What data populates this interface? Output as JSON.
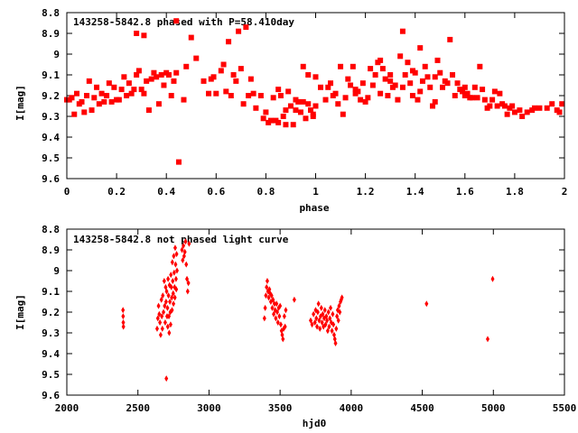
{
  "chart_data": [
    {
      "type": "scatter",
      "title": "143258-5842.8 phased with P=58.410day",
      "xlabel": "phase",
      "ylabel": "I[mag]",
      "xlim": [
        0,
        2
      ],
      "ylim": [
        9.6,
        8.8
      ],
      "y_inverted": true,
      "xticks": [
        0,
        0.2,
        0.4,
        0.6,
        0.8,
        1,
        1.2,
        1.4,
        1.6,
        1.8,
        2
      ],
      "xtick_labels": [
        "0",
        "0.2",
        "0.4",
        "0.6",
        "0.8",
        "1",
        "1.2",
        "1.4",
        "1.6",
        "1.8",
        "2"
      ],
      "yticks": [
        8.8,
        8.9,
        9.0,
        9.1,
        9.2,
        9.3,
        9.4,
        9.5,
        9.6
      ],
      "ytick_labels": [
        "8.8",
        "8.9",
        "9",
        "9.1",
        "9.2",
        "9.3",
        "9.4",
        "9.5",
        "9.6"
      ],
      "marker_color": "#ff0000",
      "marker": "filled-square",
      "points": [
        [
          0.0,
          9.22
        ],
        [
          0.01,
          9.22
        ],
        [
          0.02,
          9.21
        ],
        [
          0.03,
          9.29
        ],
        [
          0.04,
          9.19
        ],
        [
          0.05,
          9.24
        ],
        [
          0.06,
          9.23
        ],
        [
          0.07,
          9.28
        ],
        [
          0.08,
          9.2
        ],
        [
          0.09,
          9.13
        ],
        [
          0.1,
          9.27
        ],
        [
          0.11,
          9.21
        ],
        [
          0.12,
          9.16
        ],
        [
          0.13,
          9.24
        ],
        [
          0.14,
          9.19
        ],
        [
          0.15,
          9.23
        ],
        [
          0.16,
          9.2
        ],
        [
          0.17,
          9.14
        ],
        [
          0.18,
          9.23
        ],
        [
          0.19,
          9.16
        ],
        [
          0.2,
          9.22
        ],
        [
          0.21,
          9.22
        ],
        [
          0.22,
          9.17
        ],
        [
          0.23,
          9.11
        ],
        [
          0.24,
          9.2
        ],
        [
          0.25,
          9.14
        ],
        [
          0.26,
          9.19
        ],
        [
          0.27,
          9.17
        ],
        [
          0.28,
          9.1
        ],
        [
          0.29,
          9.08
        ],
        [
          0.3,
          9.17
        ],
        [
          0.31,
          9.19
        ],
        [
          0.32,
          9.13
        ],
        [
          0.33,
          9.27
        ],
        [
          0.34,
          9.12
        ],
        [
          0.35,
          9.09
        ],
        [
          0.36,
          9.11
        ],
        [
          0.37,
          9.24
        ],
        [
          0.38,
          9.1
        ],
        [
          0.39,
          9.15
        ],
        [
          0.4,
          9.09
        ],
        [
          0.41,
          9.1
        ],
        [
          0.42,
          9.2
        ],
        [
          0.43,
          9.13
        ],
        [
          0.44,
          9.09
        ],
        [
          0.28,
          8.9
        ],
        [
          0.31,
          8.91
        ],
        [
          0.44,
          8.84
        ],
        [
          0.45,
          9.52
        ],
        [
          0.47,
          9.22
        ],
        [
          0.48,
          9.06
        ],
        [
          0.5,
          8.92
        ],
        [
          0.52,
          9.02
        ],
        [
          0.55,
          9.13
        ],
        [
          0.57,
          9.19
        ],
        [
          0.58,
          9.12
        ],
        [
          0.59,
          9.11
        ],
        [
          0.6,
          9.19
        ],
        [
          0.62,
          9.08
        ],
        [
          0.63,
          9.05
        ],
        [
          0.64,
          9.18
        ],
        [
          0.65,
          8.94
        ],
        [
          0.66,
          9.2
        ],
        [
          0.67,
          9.1
        ],
        [
          0.68,
          9.13
        ],
        [
          0.69,
          8.89
        ],
        [
          0.7,
          9.07
        ],
        [
          0.71,
          9.24
        ],
        [
          0.72,
          8.87
        ],
        [
          0.73,
          9.2
        ],
        [
          0.74,
          9.12
        ],
        [
          0.75,
          9.19
        ],
        [
          0.76,
          9.26
        ],
        [
          0.78,
          9.2
        ],
        [
          0.79,
          9.31
        ],
        [
          0.8,
          9.28
        ],
        [
          0.81,
          9.33
        ],
        [
          0.82,
          9.32
        ],
        [
          0.83,
          9.21
        ],
        [
          0.84,
          9.32
        ],
        [
          0.85,
          9.33
        ],
        [
          0.86,
          9.2
        ],
        [
          0.87,
          9.3
        ],
        [
          0.88,
          9.34
        ],
        [
          0.89,
          9.18
        ],
        [
          0.9,
          9.25
        ],
        [
          0.91,
          9.34
        ],
        [
          0.92,
          9.27
        ],
        [
          0.93,
          9.23
        ],
        [
          0.94,
          9.28
        ],
        [
          0.95,
          9.23
        ],
        [
          0.96,
          9.31
        ],
        [
          0.97,
          9.24
        ],
        [
          0.98,
          9.27
        ],
        [
          0.99,
          9.29
        ],
        [
          1.0,
          9.25
        ],
        [
          0.85,
          9.17
        ],
        [
          0.88,
          9.27
        ],
        [
          0.92,
          9.22
        ],
        [
          0.95,
          9.06
        ],
        [
          0.97,
          9.1
        ],
        [
          0.99,
          9.3
        ],
        [
          1.0,
          9.11
        ],
        [
          1.02,
          9.16
        ],
        [
          1.04,
          9.22
        ],
        [
          1.05,
          9.16
        ],
        [
          1.06,
          9.14
        ],
        [
          1.07,
          9.2
        ],
        [
          1.08,
          9.19
        ],
        [
          1.09,
          9.24
        ],
        [
          1.1,
          9.06
        ],
        [
          1.11,
          9.29
        ],
        [
          1.12,
          9.21
        ],
        [
          1.13,
          9.12
        ],
        [
          1.14,
          9.15
        ],
        [
          1.15,
          9.06
        ],
        [
          1.16,
          9.19
        ],
        [
          1.17,
          9.18
        ],
        [
          1.18,
          9.22
        ],
        [
          1.19,
          9.14
        ],
        [
          1.2,
          9.23
        ],
        [
          1.21,
          9.21
        ],
        [
          1.22,
          9.07
        ],
        [
          1.23,
          9.15
        ],
        [
          1.24,
          9.1
        ],
        [
          1.25,
          9.04
        ],
        [
          1.26,
          9.19
        ],
        [
          1.27,
          9.07
        ],
        [
          1.28,
          9.12
        ],
        [
          1.29,
          9.2
        ],
        [
          1.3,
          9.1
        ],
        [
          1.31,
          9.16
        ],
        [
          1.32,
          9.15
        ],
        [
          1.33,
          9.22
        ],
        [
          1.34,
          9.01
        ],
        [
          1.35,
          8.89
        ],
        [
          1.36,
          9.1
        ],
        [
          1.37,
          9.04
        ],
        [
          1.38,
          9.14
        ],
        [
          1.39,
          9.08
        ],
        [
          1.4,
          9.09
        ],
        [
          1.41,
          9.22
        ],
        [
          1.42,
          8.97
        ],
        [
          1.43,
          9.13
        ],
        [
          1.44,
          9.06
        ],
        [
          1.45,
          9.11
        ],
        [
          1.46,
          9.16
        ],
        [
          1.47,
          9.25
        ],
        [
          1.48,
          9.23
        ],
        [
          1.49,
          9.03
        ],
        [
          1.5,
          9.09
        ],
        [
          1.51,
          9.16
        ],
        [
          1.52,
          9.13
        ],
        [
          1.53,
          9.14
        ],
        [
          1.54,
          8.93
        ],
        [
          1.55,
          9.1
        ],
        [
          1.56,
          9.2
        ],
        [
          1.57,
          9.14
        ],
        [
          1.58,
          9.17
        ],
        [
          1.59,
          9.18
        ],
        [
          1.6,
          9.2
        ],
        [
          1.61,
          9.19
        ],
        [
          1.62,
          9.21
        ],
        [
          1.63,
          9.21
        ],
        [
          1.64,
          9.16
        ],
        [
          1.65,
          9.21
        ],
        [
          1.66,
          9.06
        ],
        [
          1.67,
          9.17
        ],
        [
          1.68,
          9.22
        ],
        [
          1.69,
          9.26
        ],
        [
          1.7,
          9.25
        ],
        [
          1.71,
          9.22
        ],
        [
          1.72,
          9.18
        ],
        [
          1.73,
          9.25
        ],
        [
          1.74,
          9.19
        ],
        [
          1.75,
          9.24
        ],
        [
          1.76,
          9.25
        ],
        [
          1.77,
          9.29
        ],
        [
          1.78,
          9.26
        ],
        [
          1.79,
          9.25
        ],
        [
          1.8,
          9.28
        ],
        [
          1.82,
          9.27
        ],
        [
          1.83,
          9.3
        ],
        [
          1.85,
          9.28
        ],
        [
          1.87,
          9.27
        ],
        [
          1.88,
          9.26
        ],
        [
          1.9,
          9.26
        ],
        [
          1.93,
          9.26
        ],
        [
          1.95,
          9.24
        ],
        [
          1.97,
          9.27
        ],
        [
          1.99,
          9.24
        ],
        [
          1.98,
          9.28
        ],
        [
          1.35,
          9.16
        ],
        [
          1.42,
          9.18
        ],
        [
          1.48,
          9.11
        ],
        [
          1.26,
          9.03
        ],
        [
          1.3,
          9.13
        ],
        [
          1.6,
          9.16
        ],
        [
          1.16,
          9.17
        ],
        [
          1.39,
          9.2
        ]
      ]
    },
    {
      "type": "scatter",
      "title": "143258-5842.8 not phased light curve",
      "xlabel": "hjd0",
      "ylabel": "I[mag]",
      "xlim": [
        2000,
        5500
      ],
      "ylim": [
        9.6,
        8.8
      ],
      "y_inverted": true,
      "xticks": [
        2000,
        2500,
        3000,
        3500,
        4000,
        4500,
        5000,
        5500
      ],
      "xtick_labels": [
        "2000",
        "2500",
        "3000",
        "3500",
        "4000",
        "4500",
        "5000",
        "5500"
      ],
      "yticks": [
        8.8,
        8.9,
        9.0,
        9.1,
        9.2,
        9.3,
        9.4,
        9.5,
        9.6
      ],
      "ytick_labels": [
        "8.8",
        "8.9",
        "9",
        "9.1",
        "9.2",
        "9.3",
        "9.4",
        "9.5",
        "9.6"
      ],
      "marker_color": "#ff0000",
      "marker": "filled-diamond",
      "points": [
        [
          2395,
          9.19
        ],
        [
          2396,
          9.22
        ],
        [
          2397,
          9.25
        ],
        [
          2398,
          9.27
        ],
        [
          2635,
          9.28
        ],
        [
          2640,
          9.23
        ],
        [
          2645,
          9.17
        ],
        [
          2650,
          9.21
        ],
        [
          2655,
          9.25
        ],
        [
          2660,
          9.31
        ],
        [
          2665,
          9.14
        ],
        [
          2668,
          9.22
        ],
        [
          2672,
          9.28
        ],
        [
          2675,
          9.12
        ],
        [
          2680,
          9.2
        ],
        [
          2685,
          9.05
        ],
        [
          2688,
          9.17
        ],
        [
          2692,
          9.25
        ],
        [
          2695,
          9.08
        ],
        [
          2698,
          9.15
        ],
        [
          2700,
          9.52
        ],
        [
          2702,
          9.1
        ],
        [
          2705,
          9.22
        ],
        [
          2708,
          9.18
        ],
        [
          2710,
          9.27
        ],
        [
          2712,
          9.04
        ],
        [
          2715,
          9.12
        ],
        [
          2718,
          9.22
        ],
        [
          2720,
          9.3
        ],
        [
          2722,
          9.07
        ],
        [
          2725,
          9.15
        ],
        [
          2728,
          9.2
        ],
        [
          2730,
          9.26
        ],
        [
          2732,
          9.02
        ],
        [
          2735,
          9.08
        ],
        [
          2738,
          9.13
        ],
        [
          2740,
          9.19
        ],
        [
          2742,
          8.96
        ],
        [
          2745,
          9.05
        ],
        [
          2748,
          9.11
        ],
        [
          2750,
          9.16
        ],
        [
          2752,
          8.93
        ],
        [
          2755,
          9.01
        ],
        [
          2758,
          9.08
        ],
        [
          2760,
          9.13
        ],
        [
          2762,
          8.89
        ],
        [
          2765,
          8.97
        ],
        [
          2768,
          9.04
        ],
        [
          2770,
          9.09
        ],
        [
          2772,
          8.92
        ],
        [
          2775,
          9.0
        ],
        [
          2810,
          8.9
        ],
        [
          2815,
          8.95
        ],
        [
          2820,
          8.88
        ],
        [
          2825,
          8.93
        ],
        [
          2830,
          8.91
        ],
        [
          2835,
          8.86
        ],
        [
          2840,
          8.97
        ],
        [
          2845,
          9.04
        ],
        [
          2850,
          9.1
        ],
        [
          2855,
          9.06
        ],
        [
          2860,
          8.87
        ],
        [
          3390,
          9.23
        ],
        [
          3395,
          9.18
        ],
        [
          3400,
          9.12
        ],
        [
          3405,
          9.08
        ],
        [
          3410,
          9.05
        ],
        [
          3415,
          9.1
        ],
        [
          3420,
          9.13
        ],
        [
          3425,
          9.09
        ],
        [
          3430,
          9.11
        ],
        [
          3435,
          9.15
        ],
        [
          3440,
          9.12
        ],
        [
          3445,
          9.18
        ],
        [
          3450,
          9.14
        ],
        [
          3455,
          9.21
        ],
        [
          3460,
          9.16
        ],
        [
          3465,
          9.19
        ],
        [
          3470,
          9.23
        ],
        [
          3475,
          9.16
        ],
        [
          3480,
          9.2
        ],
        [
          3485,
          9.25
        ],
        [
          3490,
          9.18
        ],
        [
          3495,
          9.22
        ],
        [
          3500,
          9.17
        ],
        [
          3505,
          9.26
        ],
        [
          3510,
          9.29
        ],
        [
          3515,
          9.31
        ],
        [
          3520,
          9.33
        ],
        [
          3525,
          9.28
        ],
        [
          3530,
          9.22
        ],
        [
          3535,
          9.27
        ],
        [
          3540,
          9.19
        ],
        [
          3600,
          9.14
        ],
        [
          3715,
          9.24
        ],
        [
          3725,
          9.26
        ],
        [
          3735,
          9.21
        ],
        [
          3745,
          9.25
        ],
        [
          3750,
          9.19
        ],
        [
          3755,
          9.23
        ],
        [
          3760,
          9.27
        ],
        [
          3765,
          9.2
        ],
        [
          3770,
          9.16
        ],
        [
          3775,
          9.24
        ],
        [
          3780,
          9.28
        ],
        [
          3785,
          9.22
        ],
        [
          3790,
          9.18
        ],
        [
          3795,
          9.25
        ],
        [
          3800,
          9.21
        ],
        [
          3805,
          9.27
        ],
        [
          3810,
          9.23
        ],
        [
          3815,
          9.19
        ],
        [
          3820,
          9.26
        ],
        [
          3825,
          9.22
        ],
        [
          3830,
          9.24
        ],
        [
          3835,
          9.29
        ],
        [
          3840,
          9.2
        ],
        [
          3845,
          9.27
        ],
        [
          3850,
          9.23
        ],
        [
          3855,
          9.18
        ],
        [
          3860,
          9.25
        ],
        [
          3865,
          9.29
        ],
        [
          3870,
          9.21
        ],
        [
          3875,
          9.26
        ],
        [
          3880,
          9.31
        ],
        [
          3885,
          9.33
        ],
        [
          3890,
          9.35
        ],
        [
          3895,
          9.28
        ],
        [
          3900,
          9.22
        ],
        [
          3905,
          9.19
        ],
        [
          3910,
          9.24
        ],
        [
          3915,
          9.17
        ],
        [
          3920,
          9.2
        ],
        [
          3925,
          9.15
        ],
        [
          3930,
          9.14
        ],
        [
          3935,
          9.13
        ],
        [
          4530,
          9.16
        ],
        [
          4960,
          9.33
        ],
        [
          4995,
          9.04
        ]
      ]
    }
  ]
}
